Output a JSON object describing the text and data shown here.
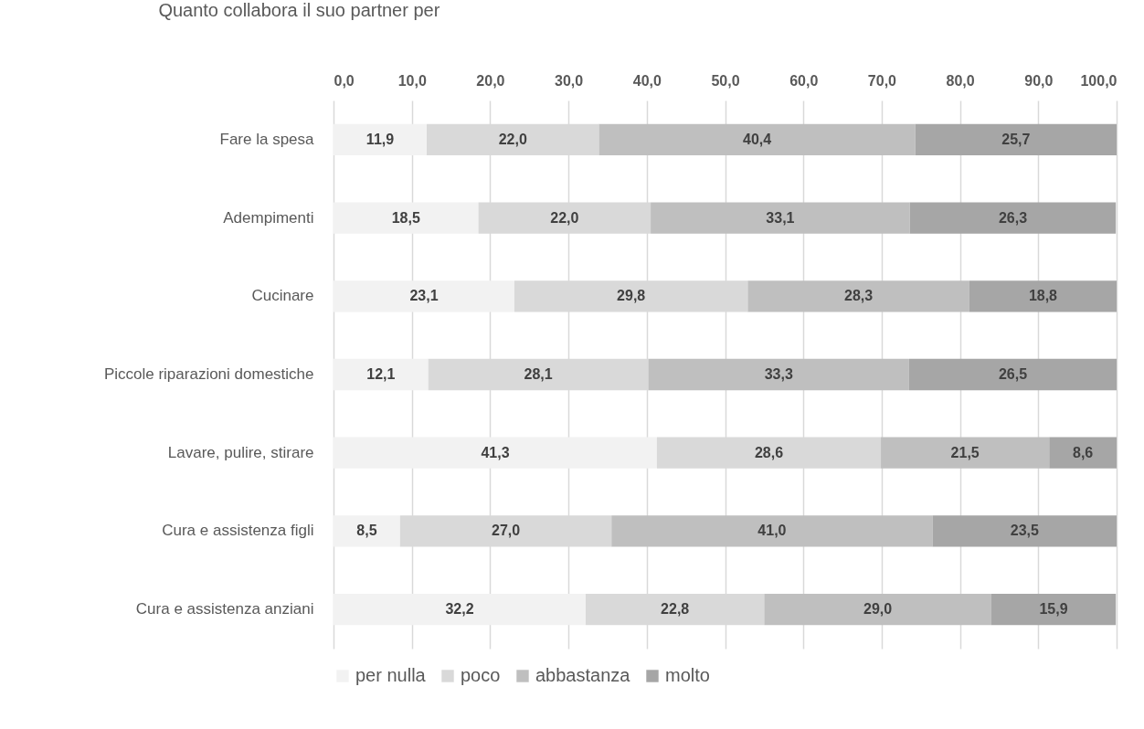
{
  "chart_data": {
    "type": "bar",
    "orientation": "horizontal",
    "stacked": true,
    "title": "Quanto collabora il suo partner per",
    "categories": [
      "Fare la spesa",
      "Adempimenti",
      "Cucinare",
      "Piccole riparazioni domestiche",
      "Lavare, pulire, stirare",
      "Cura e assistenza figli",
      "Cura e assistenza anziani"
    ],
    "series": [
      {
        "name": "per nulla",
        "color": "#f2f2f2",
        "values": [
          11.9,
          18.5,
          23.1,
          12.1,
          41.3,
          8.5,
          32.2
        ],
        "value_labels": [
          "11,9",
          "18,5",
          "23,1",
          "12,1",
          "41,3",
          "8,5",
          "32,2"
        ]
      },
      {
        "name": "poco",
        "color": "#d9d9d9",
        "values": [
          22.0,
          22.0,
          29.8,
          28.1,
          28.6,
          27.0,
          22.8
        ],
        "value_labels": [
          "22,0",
          "22,0",
          "29,8",
          "28,1",
          "28,6",
          "27,0",
          "22,8"
        ]
      },
      {
        "name": "abbastanza",
        "color": "#bfbfbf",
        "values": [
          40.4,
          33.1,
          28.3,
          33.3,
          21.5,
          41.0,
          29.0
        ],
        "value_labels": [
          "40,4",
          "33,1",
          "28,3",
          "33,3",
          "21,5",
          "41,0",
          "29,0"
        ]
      },
      {
        "name": "molto",
        "color": "#a6a6a6",
        "values": [
          25.7,
          26.3,
          18.8,
          26.5,
          8.6,
          23.5,
          15.9
        ],
        "value_labels": [
          "25,7",
          "26,3",
          "18,8",
          "26,5",
          "8,6",
          "23,5",
          "15,9"
        ]
      }
    ],
    "xlim": [
      0,
      100
    ],
    "xticks": [
      {
        "value": 0,
        "label": "0,0"
      },
      {
        "value": 10,
        "label": "10,0"
      },
      {
        "value": 20,
        "label": "20,0"
      },
      {
        "value": 30,
        "label": "30,0"
      },
      {
        "value": 40,
        "label": "40,0"
      },
      {
        "value": 50,
        "label": "50,0"
      },
      {
        "value": 60,
        "label": "60,0"
      },
      {
        "value": 70,
        "label": "70,0"
      },
      {
        "value": 80,
        "label": "80,0"
      },
      {
        "value": 90,
        "label": "90,0"
      },
      {
        "value": 100,
        "label": "100,0"
      }
    ],
    "grid": "x",
    "legend": "bottom"
  }
}
